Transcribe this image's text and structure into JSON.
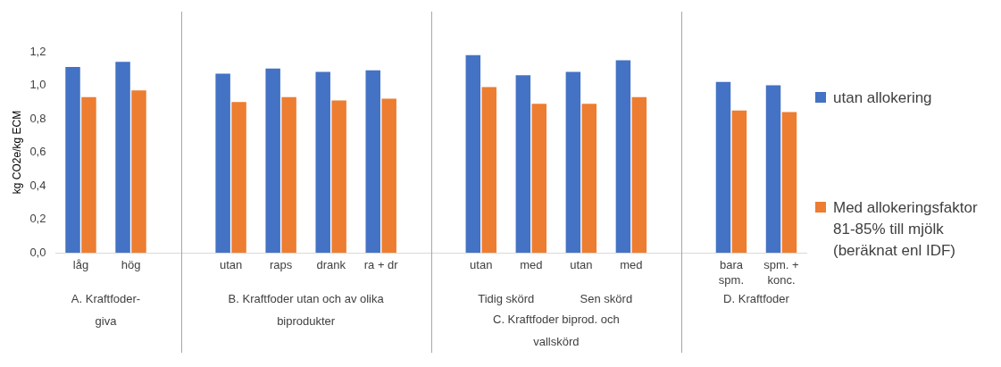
{
  "chart_data": {
    "type": "bar",
    "ylabel": "kg CO2e/kg ECM",
    "categories": [
      "låg",
      "hög",
      null,
      "utan",
      "raps",
      "drank",
      "ra + dr",
      null,
      "utan",
      "med",
      "utan",
      "med",
      null,
      "bara spm.",
      "spm. + konc."
    ],
    "series": [
      {
        "name": "utan allokering",
        "color": "#4472c4",
        "values": [
          1.11,
          1.14,
          null,
          1.07,
          1.1,
          1.08,
          1.09,
          null,
          1.18,
          1.06,
          1.08,
          1.15,
          null,
          1.02,
          1.0
        ]
      },
      {
        "name": "Med allokeringsfaktor 81-85% till mjölk (beräknat enl IDF)",
        "color": "#ed7d31",
        "values": [
          0.93,
          0.97,
          null,
          0.9,
          0.93,
          0.91,
          0.92,
          null,
          0.99,
          0.89,
          0.89,
          0.93,
          null,
          0.85,
          0.84
        ]
      }
    ],
    "annotations": [
      "Tidig skörd",
      "Sen skörd",
      "A. Kraftfoder-giva",
      "B. Kraftfoder utan och av olika biprodukter",
      "C. Kraftfoder biprod. och vallskörd",
      "D. Kraftfoder"
    ],
    "ylim": [
      0,
      1.2
    ],
    "yticks": [
      {
        "value": 0,
        "label": "0,0"
      },
      {
        "value": 0.2,
        "label": "0,2"
      },
      {
        "value": 0.4,
        "label": "0,4"
      },
      {
        "value": 0.6,
        "label": "0,6"
      },
      {
        "value": 0.8,
        "label": "0,8"
      },
      {
        "value": 1.0,
        "label": "1,0"
      },
      {
        "value": 1.2,
        "label": "1,2"
      }
    ],
    "grid": "x",
    "legend": "right"
  }
}
